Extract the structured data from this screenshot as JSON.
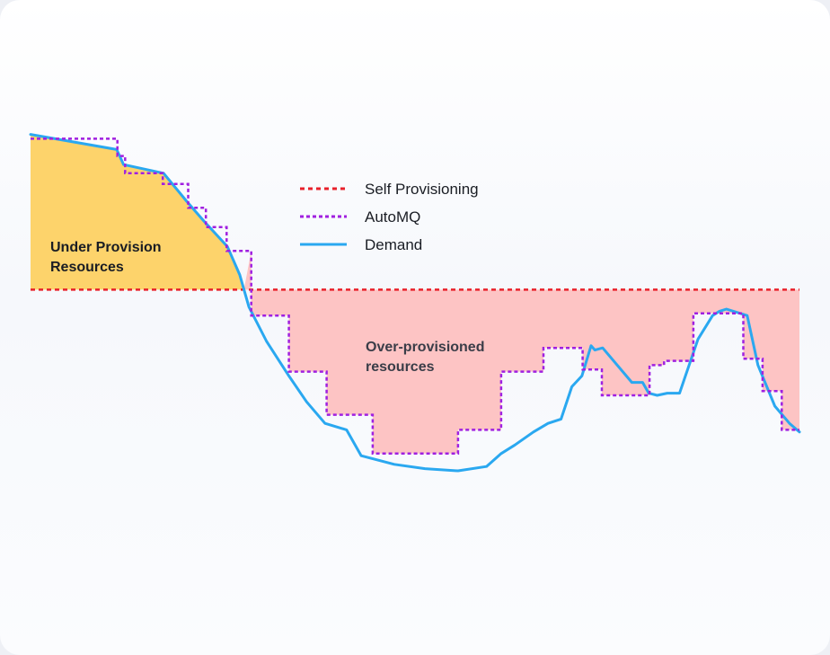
{
  "chart_data": {
    "type": "line",
    "title": "",
    "xlabel": "",
    "ylabel": "",
    "xlim": [
      0,
      100
    ],
    "ylim": [
      0,
      100
    ],
    "grid": false,
    "legend_position": "top-center",
    "series": [
      {
        "name": "Self Provisioning",
        "style": "dashed",
        "color": "#e8202a",
        "points": [
          [
            0,
            62
          ],
          [
            100,
            62
          ]
        ]
      },
      {
        "name": "AutoMQ",
        "style": "dotted-step",
        "color": "#a020e0",
        "points": [
          [
            0,
            97
          ],
          [
            11.3,
            97
          ],
          [
            11.3,
            93
          ],
          [
            12.3,
            93
          ],
          [
            12.3,
            89
          ],
          [
            17.2,
            89
          ],
          [
            17.2,
            86.5
          ],
          [
            20.5,
            86.5
          ],
          [
            20.5,
            81
          ],
          [
            22.8,
            81
          ],
          [
            22.8,
            76.5
          ],
          [
            25.5,
            76.5
          ],
          [
            25.5,
            71
          ],
          [
            28.7,
            71
          ],
          [
            28.7,
            56
          ],
          [
            33.6,
            56
          ],
          [
            33.6,
            43
          ],
          [
            38.5,
            43
          ],
          [
            38.5,
            33
          ],
          [
            44.5,
            33
          ],
          [
            44.5,
            24
          ],
          [
            55.6,
            24
          ],
          [
            55.6,
            29.5
          ],
          [
            61.2,
            29.5
          ],
          [
            61.2,
            43
          ],
          [
            66.7,
            43
          ],
          [
            66.7,
            48.5
          ],
          [
            71.8,
            48.5
          ],
          [
            71.8,
            43.5
          ],
          [
            74.3,
            43.5
          ],
          [
            74.3,
            37.5
          ],
          [
            80.5,
            37.5
          ],
          [
            80.5,
            44.5
          ],
          [
            82.4,
            44.5
          ],
          [
            82.4,
            45.5
          ],
          [
            86.2,
            45.5
          ],
          [
            86.2,
            56.5
          ],
          [
            92.7,
            56.5
          ],
          [
            92.7,
            46
          ],
          [
            95.2,
            46
          ],
          [
            95.2,
            38.5
          ],
          [
            97.7,
            38.5
          ],
          [
            97.7,
            29.5
          ],
          [
            100,
            29.5
          ]
        ]
      },
      {
        "name": "Demand",
        "style": "solid",
        "color": "#2aa8f0",
        "points": [
          [
            0,
            98
          ],
          [
            11.2,
            94.5
          ],
          [
            12.1,
            91
          ],
          [
            17.3,
            89
          ],
          [
            20.3,
            82.5
          ],
          [
            22.5,
            78
          ],
          [
            25.6,
            72
          ],
          [
            27.2,
            65.5
          ],
          [
            28.4,
            58
          ],
          [
            30.7,
            50
          ],
          [
            33.6,
            42
          ],
          [
            35.9,
            36
          ],
          [
            38.3,
            31
          ],
          [
            41.1,
            29.5
          ],
          [
            43.0,
            23.5
          ],
          [
            47.3,
            21.5
          ],
          [
            51.3,
            20.5
          ],
          [
            55.6,
            20
          ],
          [
            59.3,
            21
          ],
          [
            61.2,
            24
          ],
          [
            63.0,
            26
          ],
          [
            65.4,
            29
          ],
          [
            67.3,
            31
          ],
          [
            69.0,
            32
          ],
          [
            70.4,
            39.5
          ],
          [
            71.7,
            42
          ],
          [
            72.9,
            49
          ],
          [
            73.4,
            48
          ],
          [
            74.4,
            48.5
          ],
          [
            78.2,
            40.5
          ],
          [
            79.6,
            40.5
          ],
          [
            80.4,
            38
          ],
          [
            81.5,
            37.5
          ],
          [
            82.8,
            38
          ],
          [
            84.4,
            38
          ],
          [
            86.8,
            50.5
          ],
          [
            88.7,
            56
          ],
          [
            89.6,
            57
          ],
          [
            90.5,
            57.5
          ],
          [
            93.2,
            56
          ],
          [
            94.6,
            44.5
          ],
          [
            96.8,
            35
          ],
          [
            98.7,
            31
          ],
          [
            100,
            29
          ]
        ]
      }
    ],
    "annotations": [
      {
        "text_lines": [
          "Under Provision",
          "Resources"
        ],
        "color": "#1a1d24",
        "region": "under"
      },
      {
        "text_lines": [
          "Over-provisioned",
          "resources"
        ],
        "color": "#3a3d48",
        "region": "over"
      }
    ],
    "region_colors": {
      "under_provision": "#fdd36b",
      "over_provision": "#fdc4c4"
    }
  }
}
